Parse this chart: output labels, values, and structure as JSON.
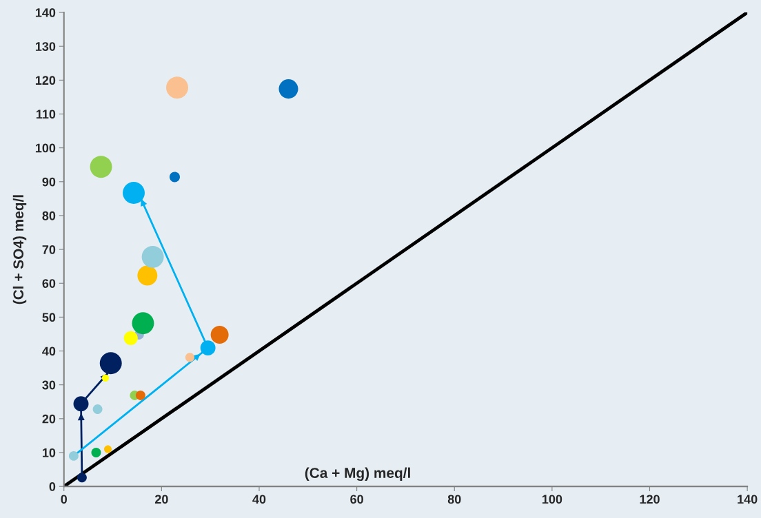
{
  "chart_data": {
    "type": "bubble",
    "xlabel": "(Ca + Mg) meq/l",
    "ylabel": "(Cl + SO4) meq/l",
    "xlim": [
      0,
      140
    ],
    "ylim": [
      0,
      140
    ],
    "xticks": [
      0,
      20,
      40,
      60,
      80,
      100,
      120,
      140
    ],
    "yticks": [
      0,
      10,
      20,
      30,
      40,
      50,
      60,
      70,
      80,
      90,
      100,
      110,
      120,
      130,
      140
    ],
    "grid": false,
    "legend": false,
    "series": [
      {
        "type": "line",
        "color": "#000000",
        "x": [
          0,
          140
        ],
        "values": [
          0,
          140
        ]
      },
      {
        "type": "line",
        "color": "#002060",
        "x": [
          3.7,
          3.5,
          8.9
        ],
        "values": [
          2.6,
          24.4,
          33.3
        ]
      },
      {
        "type": "line",
        "color": "#00b0f0",
        "x": [
          2.0,
          29.5,
          15.8
        ],
        "values": [
          9.0,
          40.9,
          84.9
        ]
      },
      {
        "x": [
          3.7,
          3.5,
          9.6,
          2.0,
          6.6,
          9.0,
          6.9,
          8.5,
          14.5,
          15.7,
          15.4,
          13.7,
          16.2,
          25.8,
          29.5,
          31.9,
          17.1,
          18.2,
          14.3,
          7.6,
          22.7,
          23.2,
          46.0
        ],
        "values": [
          2.6,
          24.4,
          36.4,
          9.0,
          10.0,
          11.0,
          22.8,
          32.0,
          26.9,
          26.9,
          44.8,
          43.8,
          48.2,
          38.1,
          40.9,
          44.8,
          62.3,
          67.8,
          86.7,
          94.4,
          91.4,
          117.8,
          117.4
        ],
        "sizes": [
          0.19,
          0.47,
          1,
          0.19,
          0.19,
          0.12,
          0.19,
          0.1,
          0.19,
          0.19,
          0.19,
          0.4,
          1,
          0.17,
          0.47,
          0.66,
          0.82,
          1,
          1,
          1,
          0.22,
          1,
          0.77
        ],
        "colors": [
          "#002060",
          "#002060",
          "#002060",
          "#92cddc",
          "#00b050",
          "#ffc000",
          "#92cddc",
          "#ffff00",
          "#92d050",
          "#e36c09",
          "#95b3d7",
          "#ffff00",
          "#00b050",
          "#fac090",
          "#00b0f0",
          "#e36c09",
          "#ffc000",
          "#92cddc",
          "#00b0f0",
          "#92d050",
          "#0070c0",
          "#fac090",
          "#0070c0"
        ]
      }
    ]
  }
}
